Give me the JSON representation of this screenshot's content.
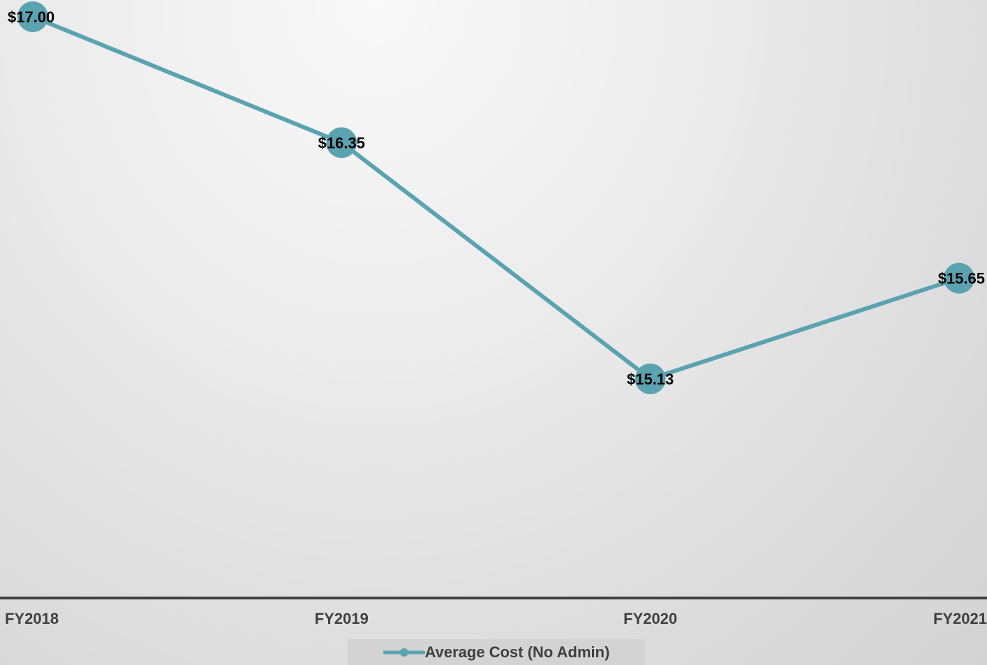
{
  "colors": {
    "series_line": "#5ba3b1",
    "axis_line": "#404040",
    "tick_label": "#404040",
    "data_label": "#000000"
  },
  "chart_data": {
    "type": "line",
    "categories": [
      "FY2018",
      "FY2019",
      "FY2020",
      "FY2021"
    ],
    "series": [
      {
        "name": "Average Cost (No Admin)",
        "values": [
          17.0,
          16.35,
          15.13,
          15.65
        ]
      }
    ],
    "data_labels": [
      "$17.00",
      "$16.35",
      "$15.13",
      "$15.65"
    ],
    "ylim": [
      14.0,
      17.1
    ],
    "title": "",
    "xlabel": "",
    "ylabel": "",
    "grid": false,
    "legend_position": "bottom",
    "markers": true
  }
}
